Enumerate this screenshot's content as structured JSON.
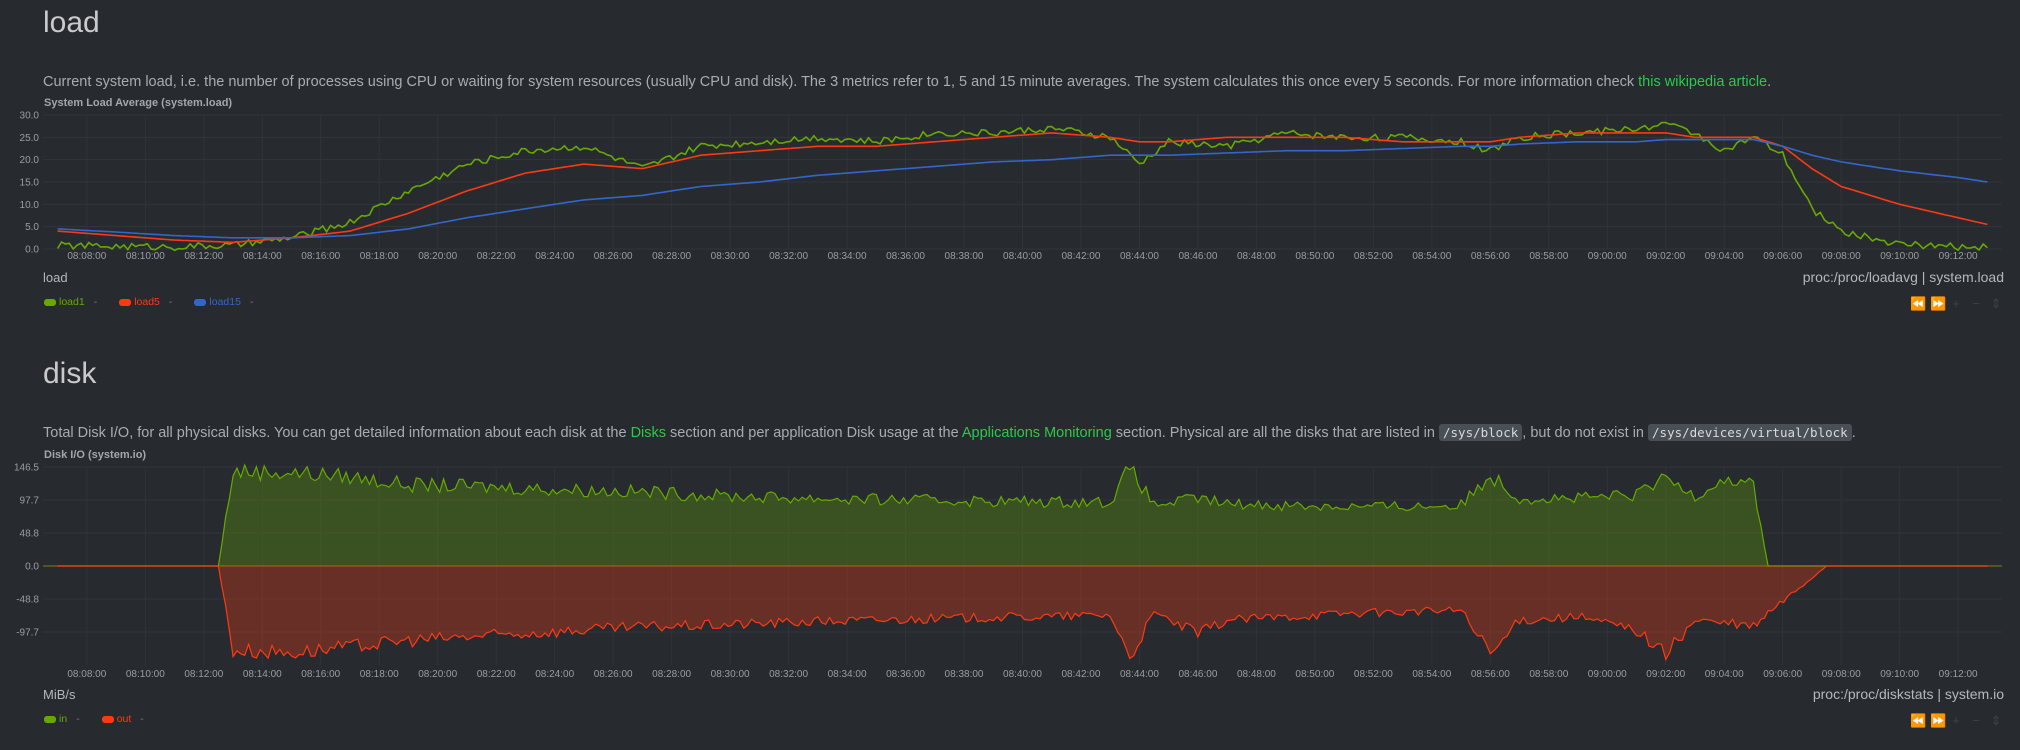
{
  "load": {
    "title": "load",
    "desc_pre": "Current system load, i.e. the number of processes using CPU or waiting for system resources (usually CPU and disk). The 3 metrics refer to 1, 5 and 15 minute averages. The system calculates this once every 5 seconds. For more information check ",
    "desc_link": "this wikipedia article",
    "desc_post": ".",
    "chart_title": "System Load Average (system.load)",
    "units": "load",
    "source": "proc:/proc/loadavg | system.load",
    "legend": [
      {
        "name": "load1",
        "value": "-",
        "color": "#66aa00"
      },
      {
        "name": "load5",
        "value": "-",
        "color": "#fe3912"
      },
      {
        "name": "load15",
        "value": "-",
        "color": "#3366cc"
      }
    ]
  },
  "disk": {
    "title": "disk",
    "desc_1": "Total Disk I/O, for all physical disks. You can get detailed information about each disk at the ",
    "link_1": "Disks",
    "desc_2": " section and per application Disk usage at the ",
    "link_2": "Applications Monitoring",
    "desc_3": " section. Physical are all the disks that are listed in ",
    "code_1": "/sys/block",
    "desc_4": ", but do not exist in ",
    "code_2": "/sys/devices/virtual/block",
    "desc_5": ".",
    "chart_title": "Disk I/O (system.io)",
    "units": "MiB/s",
    "source": "proc:/proc/diskstats | system.io",
    "legend": [
      {
        "name": "in",
        "value": "-",
        "color": "#66aa00"
      },
      {
        "name": "out",
        "value": "-",
        "color": "#fe3912"
      }
    ]
  },
  "toolbox_icons": [
    "rewind-icon",
    "forward-icon",
    "zoom-in-icon",
    "zoom-out-icon",
    "resize-icon"
  ],
  "chart_data": [
    {
      "type": "line",
      "title": "System Load Average (system.load)",
      "ylabel": "load",
      "ylim": [
        0,
        30
      ],
      "yticks": [
        "30.0",
        "25.0",
        "20.0",
        "15.0",
        "10.0",
        "5.0",
        "0.0"
      ],
      "xticks": [
        "08:08:00",
        "08:10:00",
        "08:12:00",
        "08:14:00",
        "08:16:00",
        "08:18:00",
        "08:20:00",
        "08:22:00",
        "08:24:00",
        "08:26:00",
        "08:28:00",
        "08:30:00",
        "08:32:00",
        "08:34:00",
        "08:36:00",
        "08:38:00",
        "08:40:00",
        "08:42:00",
        "08:44:00",
        "08:46:00",
        "08:48:00",
        "08:50:00",
        "08:52:00",
        "08:54:00",
        "08:56:00",
        "08:58:00",
        "09:00:00",
        "09:02:00",
        "09:04:00",
        "09:06:00",
        "09:08:00",
        "09:10:00",
        "09:12:00"
      ],
      "x": [
        "08:07",
        "08:09",
        "08:11",
        "08:13",
        "08:15",
        "08:17",
        "08:19",
        "08:21",
        "08:23",
        "08:25",
        "08:27",
        "08:29",
        "08:31",
        "08:33",
        "08:35",
        "08:37",
        "08:39",
        "08:41",
        "08:43",
        "08:44",
        "08:45",
        "08:47",
        "08:49",
        "08:51",
        "08:53",
        "08:55",
        "08:56",
        "08:57",
        "08:59",
        "09:01",
        "09:02",
        "09:03",
        "09:04",
        "09:05",
        "09:06",
        "09:07",
        "09:08",
        "09:10",
        "09:12",
        "09:13"
      ],
      "series": [
        {
          "name": "load1",
          "color": "#66aa00",
          "values": [
            0.8,
            0.6,
            0.5,
            0.8,
            2.5,
            6,
            13,
            19,
            22,
            23,
            18,
            23,
            24,
            25,
            24,
            26,
            26,
            27,
            25,
            19,
            24,
            23,
            26,
            25,
            25,
            24,
            22,
            25,
            26,
            27,
            28,
            26,
            22,
            25,
            21,
            9,
            4,
            1,
            0.5,
            0.3
          ]
        },
        {
          "name": "load5",
          "color": "#fe3912",
          "values": [
            4,
            3,
            2,
            1.5,
            2.5,
            4,
            8,
            13,
            17,
            19,
            18,
            21,
            22,
            23,
            23,
            24,
            25,
            26,
            25,
            24,
            24,
            25,
            25,
            25,
            24,
            24,
            24,
            25,
            26,
            26,
            26,
            25,
            25,
            25,
            23,
            18,
            14,
            10,
            7,
            5.5
          ]
        },
        {
          "name": "load15",
          "color": "#3366cc",
          "values": [
            4.5,
            3.8,
            3,
            2.5,
            2.5,
            3,
            4.5,
            7,
            9,
            11,
            12,
            14,
            15,
            16.5,
            17.5,
            18.5,
            19.5,
            20,
            21,
            21,
            21,
            21.5,
            22,
            22,
            22.5,
            23,
            23,
            23.5,
            24,
            24,
            24.5,
            24.5,
            24.5,
            24.5,
            23,
            21,
            19.5,
            17.5,
            16,
            15
          ]
        }
      ]
    },
    {
      "type": "area",
      "title": "Disk I/O (system.io)",
      "ylabel": "MiB/s",
      "ylim": [
        -146.5,
        146.5
      ],
      "yticks": [
        "146.5",
        "97.7",
        "48.8",
        "0.0",
        "-48.8",
        "-97.7"
      ],
      "xticks": [
        "08:08:00",
        "08:10:00",
        "08:12:00",
        "08:14:00",
        "08:16:00",
        "08:18:00",
        "08:20:00",
        "08:22:00",
        "08:24:00",
        "08:26:00",
        "08:28:00",
        "08:30:00",
        "08:32:00",
        "08:34:00",
        "08:36:00",
        "08:38:00",
        "08:40:00",
        "08:42:00",
        "08:44:00",
        "08:46:00",
        "08:48:00",
        "08:50:00",
        "08:52:00",
        "08:54:00",
        "08:56:00",
        "08:58:00",
        "09:00:00",
        "09:02:00",
        "09:04:00",
        "09:06:00",
        "09:08:00",
        "09:10:00",
        "09:12:00"
      ],
      "x": [
        "08:07",
        "08:12:30",
        "08:13",
        "08:15",
        "08:17",
        "08:19",
        "08:21",
        "08:23",
        "08:25",
        "08:27",
        "08:29",
        "08:31",
        "08:33",
        "08:35",
        "08:37",
        "08:39",
        "08:41",
        "08:43",
        "08:43:40",
        "08:44:30",
        "08:46",
        "08:47",
        "08:49",
        "08:51",
        "08:53",
        "08:55",
        "08:56",
        "08:57",
        "08:59",
        "09:01",
        "09:02",
        "09:03",
        "09:04",
        "09:05",
        "09:05:30",
        "09:07:30",
        "09:10",
        "09:13"
      ],
      "series": [
        {
          "name": "in",
          "color": "#66aa00",
          "values": [
            0,
            0,
            140,
            138,
            132,
            120,
            118,
            115,
            112,
            110,
            105,
            102,
            100,
            98,
            97,
            96,
            95,
            95,
            145,
            90,
            100,
            92,
            90,
            88,
            88,
            90,
            135,
            100,
            100,
            105,
            130,
            105,
            130,
            120,
            0,
            0,
            0,
            0
          ]
        },
        {
          "name": "out",
          "color": "#fe3912",
          "values": [
            0,
            0,
            -125,
            -128,
            -120,
            -110,
            -105,
            -100,
            -95,
            -90,
            -88,
            -85,
            -82,
            -80,
            -78,
            -76,
            -75,
            -72,
            -135,
            -70,
            -100,
            -80,
            -75,
            -70,
            -68,
            -65,
            -132,
            -80,
            -75,
            -95,
            -130,
            -80,
            -85,
            -90,
            -70,
            0,
            0,
            0
          ]
        }
      ]
    }
  ]
}
